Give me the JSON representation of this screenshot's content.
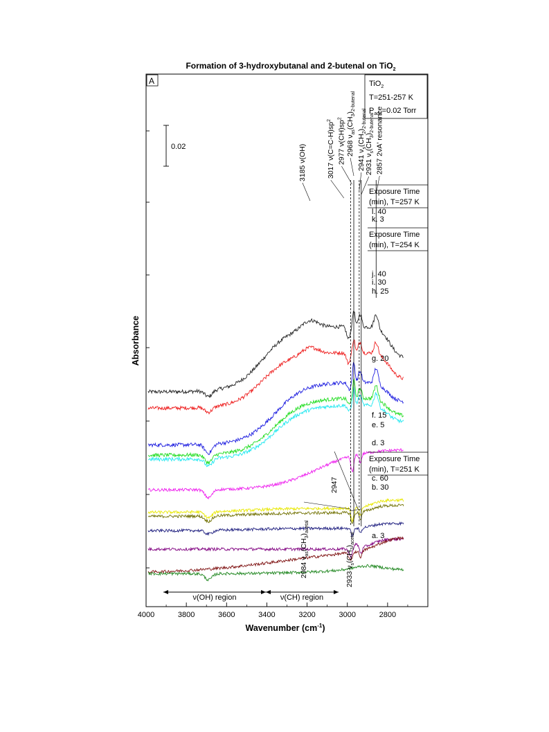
{
  "chart_data": {
    "type": "line",
    "title": "Formation of 3-hydroxybutanal and 2-butenal on TiO",
    "title_sub": "2",
    "panel_label": "A",
    "xlabel": "Wavenumber (cm",
    "xlabel_sup": "-1",
    "xlabel_end": ")",
    "ylabel": "Absorbance",
    "x_axis": {
      "min": 4000,
      "max": 2600,
      "reversed": true,
      "ticks": [
        4000,
        3800,
        3600,
        3400,
        3200,
        3000,
        2800
      ]
    },
    "grid": false,
    "scale_bar": {
      "label": "0.02",
      "value": 0.02
    },
    "info_box": {
      "line1": "TiO",
      "line1_sub": "2",
      "line2": "T=251-257 K",
      "line3_a": "P",
      "line3_sub": "ads",
      "line3_b": "=0.02 Torr"
    },
    "groups": [
      {
        "line1": "Exposure Time",
        "line2": "(min), T=257 K"
      },
      {
        "line1": "Exposure Time",
        "line2": "(min), T=254 K"
      },
      {
        "line1": "Exposure Time",
        "line2": "(min), T=251 K"
      }
    ],
    "region_labels": [
      "ν(OH) region",
      "ν(CH) region"
    ],
    "series": [
      {
        "name": "l. 40",
        "color": "#222222",
        "offset": 0.076,
        "type": "A",
        "amp": 1.0
      },
      {
        "name": "k. 3",
        "color": "#ee2020",
        "offset": 0.068,
        "type": "A",
        "amp": 0.85
      },
      {
        "name": "j. 40",
        "color": "#2020e0",
        "offset": 0.05,
        "type": "B",
        "amp": 1.1
      },
      {
        "name": "i. 30",
        "color": "#22dd22",
        "offset": 0.045,
        "type": "B",
        "amp": 1.0
      },
      {
        "name": "h. 25",
        "color": "#22e8f0",
        "offset": 0.043,
        "type": "B",
        "amp": 0.95
      },
      {
        "name": "g. 20",
        "color": "#ee22ee",
        "offset": 0.025,
        "type": "C",
        "amp": 1.0
      },
      {
        "name": "f. 15",
        "color": "#e8e800",
        "offset": 0.017,
        "type": "D",
        "amp": 1.0
      },
      {
        "name": "e. 5",
        "color": "#707000",
        "offset": 0.015,
        "type": "D",
        "amp": 0.9
      },
      {
        "name": "d. 3",
        "color": "#202080",
        "offset": 0.008,
        "type": "D",
        "amp": 0.6
      },
      {
        "name": "c. 60",
        "color": "#800080",
        "offset": -0.001,
        "type": "E",
        "amp": 1.0
      },
      {
        "name": "b. 30",
        "color": "#801515",
        "offset": -0.003,
        "type": "F",
        "amp": 1.0
      },
      {
        "name": "a. 3",
        "color": "#228822",
        "offset": -0.012,
        "type": "G",
        "amp": 1.0
      }
    ],
    "peak_labels": [
      {
        "main": "3185 ν(OH)",
        "x": 3185
      },
      {
        "main": "3017 ν(C=C-H)sp",
        "sup": "2",
        "x": 3017
      },
      {
        "main": "2977 ν(CH)sp",
        "sup": "2",
        "x": 2977
      },
      {
        "main": "2968 ν",
        "sub1": "as",
        "mid": "(CH",
        "sub2": "3",
        "end": ")",
        "sub3": "2-butenal",
        "x": 2968
      },
      {
        "main": "2941 ν",
        "sub1": "s",
        "mid": "(CH",
        "sub2": "2",
        "end": ")",
        "sub3": "2-butenal",
        "x": 2941
      },
      {
        "main": "2931 ν",
        "sub1": "s",
        "mid": "(CH",
        "sub2": "3",
        "end": ")",
        "sub3": "2-butenal",
        "x": 2931
      },
      {
        "main": "2857 2νA' resonance",
        "x": 2857
      }
    ],
    "low_labels": [
      {
        "main": "2984 ν",
        "sub1": "as",
        "mid": "(CH",
        "sub2": "3",
        "end": ")",
        "sub3": "acetal",
        "x": 2984
      },
      {
        "main": "2933 ν",
        "sub1": "s",
        "mid": "(CH",
        "sub2": "3",
        "end": ")",
        "sub3": "acetal",
        "x": 2933
      },
      {
        "main": "2947",
        "x": 2947
      }
    ]
  }
}
